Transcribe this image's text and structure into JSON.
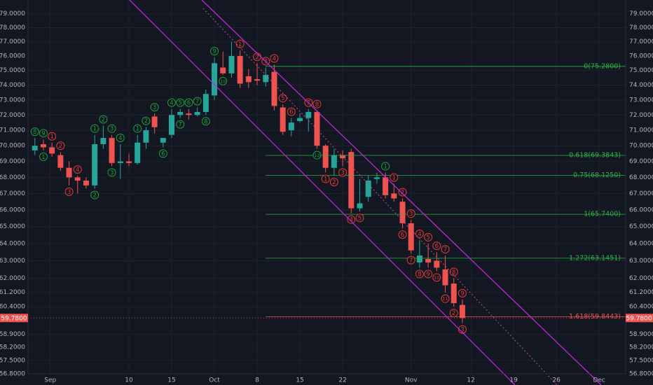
{
  "chart_data": {
    "type": "candlestick",
    "x": [
      -1,
      0,
      1,
      2,
      3,
      4,
      5,
      6,
      7,
      8,
      9,
      10,
      11,
      12,
      13,
      14,
      15,
      16,
      17,
      18,
      19,
      20,
      21,
      22,
      23,
      24,
      25,
      26,
      27,
      28,
      29,
      30,
      31,
      32,
      33,
      34,
      35,
      36,
      37,
      38,
      39,
      40,
      41,
      42,
      43,
      44,
      45,
      46,
      47,
      48,
      49
    ],
    "open": [
      69.7,
      70.1,
      69.9,
      69.4,
      68.6,
      68.0,
      67.8,
      67.5,
      70.1,
      70.5,
      68.9,
      69.0,
      68.9,
      70.2,
      71.9,
      70.2,
      70.7,
      72.0,
      72.1,
      72.0,
      72.2,
      73.3,
      75.2,
      74.8,
      76.0,
      74.6,
      74.4,
      74.2,
      74.9,
      72.5,
      71.0,
      71.6,
      71.8,
      72.2,
      70.0,
      68.6,
      69.4,
      69.6,
      66.1,
      66.8,
      67.9,
      68.0,
      67.0,
      66.5,
      65.2,
      62.9,
      63.1,
      63.0,
      62.5,
      61.7,
      60.5
    ],
    "high": [
      70.5,
      70.4,
      70.2,
      69.6,
      69.0,
      68.1,
      68.0,
      70.7,
      71.3,
      70.7,
      70.1,
      69.5,
      70.7,
      71.2,
      72.1,
      70.5,
      72.4,
      72.4,
      72.4,
      72.5,
      73.7,
      75.9,
      76.3,
      77.0,
      76.4,
      75.1,
      75.5,
      75.2,
      75.4,
      72.7,
      71.8,
      72.1,
      72.4,
      72.3,
      70.1,
      69.8,
      69.7,
      69.8,
      67.9,
      68.1,
      68.3,
      68.3,
      67.6,
      66.7,
      65.4,
      64.2,
      64.0,
      63.5,
      63.3,
      62.0,
      60.8
    ],
    "low": [
      69.4,
      69.7,
      69.3,
      68.4,
      67.5,
      67.0,
      67.3,
      67.3,
      69.8,
      68.7,
      67.9,
      68.7,
      68.8,
      69.8,
      70.8,
      69.9,
      70.5,
      71.8,
      71.7,
      71.9,
      72.0,
      73.0,
      74.7,
      74.5,
      73.8,
      73.8,
      74.0,
      73.9,
      72.3,
      70.7,
      70.6,
      71.5,
      70.9,
      69.8,
      68.3,
      68.1,
      68.7,
      65.8,
      65.9,
      66.5,
      67.6,
      66.7,
      66.5,
      64.9,
      63.4,
      62.6,
      62.6,
      62.4,
      61.2,
      60.4,
      59.5
    ],
    "close": [
      70.0,
      69.9,
      69.5,
      68.6,
      68.0,
      67.8,
      67.5,
      70.1,
      70.5,
      68.9,
      69.0,
      68.9,
      70.2,
      71.0,
      71.2,
      70.5,
      72.0,
      72.2,
      72.0,
      72.2,
      73.4,
      75.5,
      74.8,
      76.0,
      74.1,
      74.2,
      74.3,
      74.7,
      72.6,
      70.9,
      71.5,
      71.8,
      72.2,
      70.0,
      68.6,
      69.4,
      69.2,
      66.1,
      66.4,
      67.8,
      68.0,
      66.9,
      66.7,
      65.2,
      63.6,
      63.3,
      62.9,
      62.6,
      61.6,
      60.6,
      59.78
    ],
    "up_color": "#26a69a",
    "down_color": "#ef5350",
    "log_scale": true,
    "xlim": [
      -1.8,
      68.1
    ],
    "xticks": [
      {
        "value": 0.8,
        "label": "Sep"
      },
      10,
      15,
      {
        "value": 20,
        "label": "Oct"
      },
      {
        "value": 25,
        "label": "8"
      },
      {
        "value": 30,
        "label": "15"
      },
      {
        "value": 35,
        "label": "22"
      },
      {
        "value": 43,
        "label": "Nov"
      },
      {
        "value": 50,
        "label": "12"
      },
      {
        "value": 55,
        "label": "19"
      },
      {
        "value": 60,
        "label": "26"
      },
      {
        "value": 65,
        "label": "Dec"
      }
    ],
    "ylim": [
      56.8,
      80.0
    ],
    "yticks": [
      {
        "value": 79,
        "label": "79.0000"
      },
      {
        "value": 78,
        "label": "78.0000"
      },
      {
        "value": 77,
        "label": "77.0000"
      },
      {
        "value": 76,
        "label": "76.0000"
      },
      {
        "value": 75,
        "label": "75.0000"
      },
      {
        "value": 74,
        "label": "74.0000"
      },
      {
        "value": 73,
        "label": "73.0000"
      },
      {
        "value": 72,
        "label": "72.0000"
      },
      {
        "value": 71,
        "label": "71.0000"
      },
      {
        "value": 70,
        "label": "70.0000"
      },
      {
        "value": 69,
        "label": "69.0000"
      },
      {
        "value": 68,
        "label": "68.0000"
      },
      {
        "value": 67,
        "label": "67.0000"
      },
      {
        "value": 66,
        "label": "66.0000"
      },
      {
        "value": 65,
        "label": "65.0000"
      },
      {
        "value": 64,
        "label": "64.0000"
      },
      {
        "value": 63,
        "label": "63.0000"
      },
      {
        "value": 62,
        "label": "62.0000"
      },
      {
        "value": 61.2,
        "label": "61.2000"
      },
      {
        "value": 60.4,
        "label": "60.4000"
      },
      {
        "value": 58.9,
        "label": "58.9000"
      },
      {
        "value": 58.2,
        "label": "58.2000"
      },
      {
        "value": 57.5,
        "label": "57.5000"
      },
      {
        "value": 56.8,
        "label": "56.8000"
      }
    ],
    "grid": true,
    "last_price": {
      "value": 59.78,
      "label": "59.7800",
      "color": "#ef5350"
    },
    "fib_levels": [
      {
        "value": 75.28,
        "label": "0(75.2800)",
        "color": "#2fb344"
      },
      {
        "value": 69.3843,
        "label": "0.618(69.3843)",
        "color": "#2fb344"
      },
      {
        "value": 68.125,
        "label": "0.75(68.1250)",
        "color": "#2fb344"
      },
      {
        "value": 65.74,
        "label": "1(65.7400)",
        "color": "#2fb344"
      },
      {
        "value": 63.1451,
        "label": "1.272(63.1451)",
        "color": "#2fb344"
      },
      {
        "value": 59.8443,
        "label": "1.618(59.8443)",
        "color": "#ef5350"
      }
    ],
    "fib_start": 26,
    "counts": [
      {
        "x": -1,
        "label": "8",
        "position": "above",
        "color": "#1e9e3a"
      },
      {
        "x": 0,
        "label": "9",
        "position": "above",
        "color": "#1e9e3a"
      },
      {
        "x": 0,
        "label": "1",
        "position": "below",
        "color": "#1e9e3a"
      },
      {
        "x": 1,
        "label": "1",
        "position": "above",
        "color": "#e53935"
      },
      {
        "x": 2,
        "label": "2",
        "position": "above",
        "color": "#e53935"
      },
      {
        "x": 3,
        "label": "3",
        "position": "below",
        "color": "#e53935"
      },
      {
        "x": 4,
        "label": "4",
        "position": "above",
        "color": "#e53935"
      },
      {
        "x": 6,
        "label": "1",
        "position": "above",
        "color": "#1e9e3a"
      },
      {
        "x": 6,
        "label": "2",
        "position": "below",
        "color": "#1e9e3a"
      },
      {
        "x": 7,
        "label": "2",
        "position": "above",
        "color": "#1e9e3a"
      },
      {
        "x": 8,
        "label": "3",
        "position": "above",
        "color": "#1e9e3a"
      },
      {
        "x": 8,
        "label": "3",
        "position": "below",
        "color": "#1e9e3a"
      },
      {
        "x": 9,
        "label": "4",
        "position": "above",
        "color": "#1e9e3a"
      },
      {
        "x": 11,
        "label": "1",
        "position": "above",
        "color": "#1e9e3a"
      },
      {
        "x": 12,
        "label": "2",
        "position": "above",
        "color": "#1e9e3a"
      },
      {
        "x": 13,
        "label": "3",
        "position": "above",
        "color": "#1e9e3a"
      },
      {
        "x": 14,
        "label": "6",
        "position": "below",
        "color": "#1e9e3a"
      },
      {
        "x": 15,
        "label": "4",
        "position": "above",
        "color": "#1e9e3a"
      },
      {
        "x": 16,
        "label": "5",
        "position": "above",
        "color": "#1e9e3a"
      },
      {
        "x": 16,
        "label": "7",
        "position": "below",
        "color": "#1e9e3a"
      },
      {
        "x": 17,
        "label": "6",
        "position": "above",
        "color": "#1e9e3a"
      },
      {
        "x": 18,
        "label": "7",
        "position": "above",
        "color": "#1e9e3a"
      },
      {
        "x": 19,
        "label": "8",
        "position": "below",
        "color": "#1e9e3a"
      },
      {
        "x": 20,
        "label": "9",
        "position": "above",
        "color": "#1e9e3a"
      },
      {
        "x": 21,
        "label": "10",
        "position": "below",
        "color": "#1e9e3a"
      },
      {
        "x": 23,
        "label": "1",
        "position": "above",
        "color": "#e53935"
      },
      {
        "x": 25,
        "label": "2",
        "position": "above",
        "color": "#e53935"
      },
      {
        "x": 26,
        "label": "3",
        "position": "above",
        "color": "#e53935"
      },
      {
        "x": 27,
        "label": "4",
        "position": "above",
        "color": "#e53935"
      },
      {
        "x": 28,
        "label": "5",
        "position": "above",
        "color": "#e53935"
      },
      {
        "x": 29,
        "label": "6",
        "position": "above",
        "color": "#e53935"
      },
      {
        "x": 31,
        "label": "7",
        "position": "above",
        "color": "#e53935"
      },
      {
        "x": 32,
        "label": "8",
        "position": "above",
        "color": "#e53935"
      },
      {
        "x": 32,
        "label": "12",
        "position": "below",
        "color": "#1e9e3a"
      },
      {
        "x": 33,
        "label": "1",
        "position": "below",
        "color": "#e53935"
      },
      {
        "x": 34,
        "label": "2",
        "position": "below",
        "color": "#e53935"
      },
      {
        "x": 35,
        "label": "3",
        "position": "below",
        "color": "#e53935"
      },
      {
        "x": 36,
        "label": "4",
        "position": "below",
        "color": "#e53935"
      },
      {
        "x": 37,
        "label": "5",
        "position": "below",
        "color": "#e53935"
      },
      {
        "x": 40,
        "label": "1",
        "position": "above",
        "color": "#1e9e3a"
      },
      {
        "x": 41,
        "label": "1",
        "position": "above",
        "color": "#e53935"
      },
      {
        "x": 42,
        "label": "2",
        "position": "above",
        "color": "#e53935"
      },
      {
        "x": 42,
        "label": "6",
        "position": "below",
        "color": "#e53935"
      },
      {
        "x": 43,
        "label": "3",
        "position": "above",
        "color": "#e53935"
      },
      {
        "x": 43,
        "label": "7",
        "position": "below",
        "color": "#e53935"
      },
      {
        "x": 44,
        "label": "4",
        "position": "above",
        "color": "#e53935"
      },
      {
        "x": 44,
        "label": "8",
        "position": "below",
        "color": "#e53935"
      },
      {
        "x": 45,
        "label": "5",
        "position": "above",
        "color": "#e53935"
      },
      {
        "x": 45,
        "label": "9",
        "position": "below",
        "color": "#e53935"
      },
      {
        "x": 46,
        "label": "6",
        "position": "above",
        "color": "#e53935"
      },
      {
        "x": 46,
        "label": "10",
        "position": "below",
        "color": "#e53935"
      },
      {
        "x": 47,
        "label": "7",
        "position": "above",
        "color": "#e53935"
      },
      {
        "x": 47,
        "label": "11",
        "position": "below",
        "color": "#e53935"
      },
      {
        "x": 48,
        "label": "8",
        "position": "above",
        "color": "#e53935"
      },
      {
        "x": 48,
        "label": "2",
        "position": "below",
        "color": "#e53935"
      },
      {
        "x": 49,
        "label": "9",
        "position": "above",
        "color": "#e53935"
      },
      {
        "x": 49,
        "label": "3",
        "position": "below",
        "color": "#e53935"
      }
    ]
  }
}
